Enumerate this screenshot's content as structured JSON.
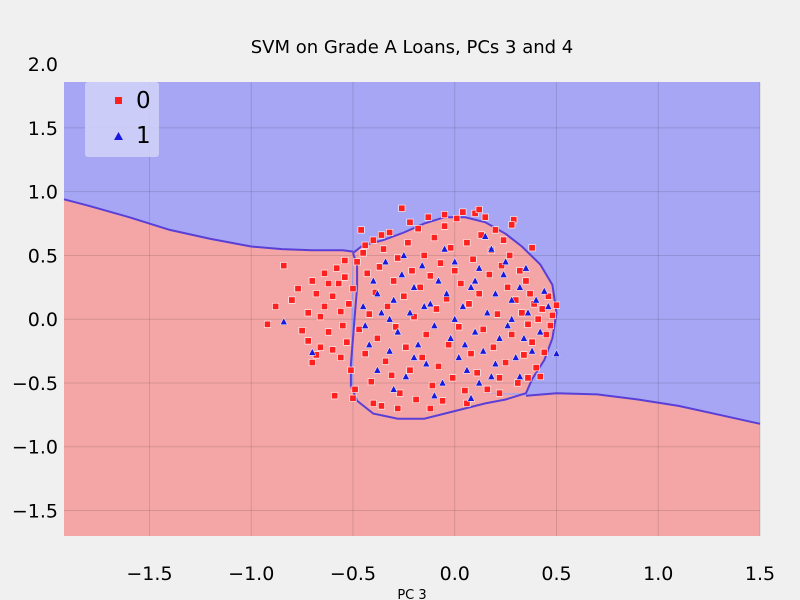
{
  "chart_data": {
    "type": "scatter",
    "title": "SVM on Grade A Loans, PCs 3 and 4",
    "xlabel": "PC 3",
    "ylabel": "",
    "xlim": [
      -1.92,
      1.5
    ],
    "ylim": [
      -1.7,
      1.86
    ],
    "xticks": [
      -1.5,
      -1.0,
      -0.5,
      0.0,
      0.5,
      1.0,
      1.5
    ],
    "xtick_labels": [
      "−1.5",
      "−1.0",
      "−0.5",
      "0.0",
      "0.5",
      "1.0",
      "1.5"
    ],
    "yticks": [
      -1.5,
      -1.0,
      -0.5,
      0.0,
      0.5,
      1.0,
      1.5,
      2.0
    ],
    "ytick_labels": [
      "−1.5",
      "−1.0",
      "−0.5",
      "0.0",
      "0.5",
      "1.0",
      "1.5",
      "2.0"
    ],
    "grid": true,
    "legend_position": "top-left",
    "colors": {
      "page_background": "#f0f0f0",
      "region_0": "#f4a6a6",
      "region_1": "#a6a6f4",
      "boundary": "#5a3fd6",
      "grid": "#cbcbcb",
      "class_0_marker": "#ff2020",
      "class_1_marker": "#1a1adf"
    },
    "decision_regions": [
      {
        "class": "0",
        "note": "lower region"
      },
      {
        "class": "1",
        "note": "upper region"
      }
    ],
    "boundary_outer": [
      [
        -1.92,
        0.94
      ],
      [
        -1.8,
        0.89
      ],
      [
        -1.6,
        0.8
      ],
      [
        -1.4,
        0.7
      ],
      [
        -1.2,
        0.63
      ],
      [
        -1.0,
        0.57
      ],
      [
        -0.85,
        0.55
      ],
      [
        -0.7,
        0.54
      ],
      [
        -0.55,
        0.54
      ],
      [
        -0.5,
        0.53
      ]
    ],
    "boundary_outer_right": [
      [
        0.35,
        -0.6
      ],
      [
        0.5,
        -0.58
      ],
      [
        0.7,
        -0.59
      ],
      [
        0.9,
        -0.63
      ],
      [
        1.1,
        -0.68
      ],
      [
        1.3,
        -0.75
      ],
      [
        1.5,
        -0.82
      ]
    ],
    "boundary_island": [
      [
        -0.5,
        0.52
      ],
      [
        -0.45,
        0.58
      ],
      [
        -0.35,
        0.62
      ],
      [
        -0.25,
        0.68
      ],
      [
        -0.15,
        0.75
      ],
      [
        -0.05,
        0.8
      ],
      [
        0.05,
        0.8
      ],
      [
        0.15,
        0.76
      ],
      [
        0.25,
        0.67
      ],
      [
        0.33,
        0.57
      ],
      [
        0.42,
        0.43
      ],
      [
        0.48,
        0.27
      ],
      [
        0.5,
        0.05
      ],
      [
        0.48,
        -0.15
      ],
      [
        0.44,
        -0.32
      ],
      [
        0.38,
        -0.47
      ],
      [
        0.35,
        -0.58
      ],
      [
        0.25,
        -0.63
      ],
      [
        0.15,
        -0.66
      ],
      [
        0.05,
        -0.7
      ],
      [
        -0.05,
        -0.74
      ],
      [
        -0.15,
        -0.78
      ],
      [
        -0.28,
        -0.78
      ],
      [
        -0.4,
        -0.74
      ],
      [
        -0.48,
        -0.64
      ],
      [
        -0.51,
        -0.52
      ],
      [
        -0.51,
        -0.35
      ],
      [
        -0.5,
        -0.15
      ],
      [
        -0.49,
        0.05
      ],
      [
        -0.48,
        0.25
      ],
      [
        -0.48,
        0.42
      ],
      [
        -0.5,
        0.52
      ]
    ],
    "series": [
      {
        "name": "0",
        "marker": "square",
        "points": [
          [
            -0.92,
            -0.04
          ],
          [
            -0.88,
            0.1
          ],
          [
            -0.84,
            0.42
          ],
          [
            -0.8,
            0.15
          ],
          [
            -0.77,
            0.24
          ],
          [
            -0.75,
            -0.09
          ],
          [
            -0.72,
            0.05
          ],
          [
            -0.72,
            -0.17
          ],
          [
            -0.7,
            -0.34
          ],
          [
            -0.68,
            0.2
          ],
          [
            -0.66,
            0.02
          ],
          [
            -0.64,
            0.36
          ],
          [
            -0.62,
            -0.1
          ],
          [
            -0.6,
            0.18
          ],
          [
            -0.6,
            -0.24
          ],
          [
            -0.59,
            -0.6
          ],
          [
            -0.57,
            0.28
          ],
          [
            -0.56,
            0.06
          ],
          [
            -0.55,
            -0.05
          ],
          [
            -0.54,
            0.33
          ],
          [
            -0.53,
            -0.18
          ],
          [
            -0.52,
            0.12
          ],
          [
            -0.51,
            -0.4
          ],
          [
            -0.5,
            0.24
          ],
          [
            -0.49,
            -0.55
          ],
          [
            -0.48,
            0.45
          ],
          [
            -0.47,
            -0.08
          ],
          [
            -0.46,
            0.7
          ],
          [
            -0.45,
            0.52
          ],
          [
            -0.44,
            -0.27
          ],
          [
            -0.43,
            0.36
          ],
          [
            -0.42,
            0.04
          ],
          [
            -0.41,
            -0.49
          ],
          [
            -0.4,
            0.62
          ],
          [
            -0.39,
            0.21
          ],
          [
            -0.38,
            -0.15
          ],
          [
            -0.37,
            0.41
          ],
          [
            -0.36,
            -0.68
          ],
          [
            -0.35,
            0.55
          ],
          [
            -0.34,
            -0.33
          ],
          [
            -0.33,
            0.1
          ],
          [
            -0.32,
            0.68
          ],
          [
            -0.31,
            -0.44
          ],
          [
            -0.3,
            0.3
          ],
          [
            -0.29,
            -0.06
          ],
          [
            -0.28,
            0.48
          ],
          [
            -0.27,
            -0.58
          ],
          [
            -0.26,
            0.87
          ],
          [
            -0.25,
            0.18
          ],
          [
            -0.24,
            -0.22
          ],
          [
            -0.23,
            0.6
          ],
          [
            -0.22,
            -0.4
          ],
          [
            -0.21,
            0.38
          ],
          [
            -0.2,
            0.02
          ],
          [
            -0.19,
            -0.63
          ],
          [
            -0.18,
            0.71
          ],
          [
            -0.17,
            0.25
          ],
          [
            -0.16,
            -0.3
          ],
          [
            -0.15,
            0.5
          ],
          [
            -0.14,
            -0.12
          ],
          [
            -0.13,
            0.8
          ],
          [
            -0.12,
            0.34
          ],
          [
            -0.11,
            -0.52
          ],
          [
            -0.1,
            0.64
          ],
          [
            -0.09,
            0.08
          ],
          [
            -0.08,
            -0.37
          ],
          [
            -0.07,
            0.44
          ],
          [
            -0.06,
            -0.64
          ],
          [
            -0.05,
            0.73
          ],
          [
            -0.04,
            0.16
          ],
          [
            -0.03,
            -0.2
          ],
          [
            -0.02,
            0.56
          ],
          [
            -0.01,
            -0.46
          ],
          [
            0.0,
            0.38
          ],
          [
            0.01,
            0.79
          ],
          [
            0.02,
            -0.06
          ],
          [
            0.03,
            0.28
          ],
          [
            0.04,
            0.84
          ],
          [
            0.05,
            -0.56
          ],
          [
            0.06,
            0.6
          ],
          [
            0.07,
            0.12
          ],
          [
            0.08,
            -0.27
          ],
          [
            0.09,
            0.47
          ],
          [
            0.1,
            0.83
          ],
          [
            0.11,
            -0.42
          ],
          [
            0.12,
            0.2
          ],
          [
            0.13,
            0.66
          ],
          [
            0.14,
            -0.08
          ],
          [
            0.15,
            0.8
          ],
          [
            0.16,
            -0.55
          ],
          [
            0.17,
            0.35
          ],
          [
            0.18,
            0.54
          ],
          [
            0.19,
            -0.22
          ],
          [
            0.2,
            0.7
          ],
          [
            0.21,
            0.04
          ],
          [
            0.22,
            -0.46
          ],
          [
            0.23,
            0.42
          ],
          [
            0.24,
            0.62
          ],
          [
            0.25,
            -0.34
          ],
          [
            0.26,
            0.25
          ],
          [
            0.27,
            0.5
          ],
          [
            0.28,
            -0.12
          ],
          [
            0.29,
            0.78
          ],
          [
            0.3,
            0.15
          ],
          [
            0.31,
            -0.5
          ],
          [
            0.32,
            0.38
          ],
          [
            0.33,
            0.05
          ],
          [
            0.34,
            -0.28
          ],
          [
            0.35,
            0.3
          ],
          [
            0.36,
            -0.04
          ],
          [
            0.37,
            0.2
          ],
          [
            0.38,
            -0.18
          ],
          [
            0.39,
            0.12
          ],
          [
            0.4,
            -0.38
          ],
          [
            0.41,
            0.0
          ],
          [
            0.42,
            -0.45
          ],
          [
            0.43,
            0.08
          ],
          [
            0.44,
            -0.26
          ],
          [
            0.45,
            -0.12
          ],
          [
            0.46,
            0.18
          ],
          [
            0.47,
            -0.05
          ],
          [
            0.48,
            0.03
          ],
          [
            0.5,
            0.11
          ],
          [
            -0.58,
            0.4
          ],
          [
            -0.62,
            0.28
          ],
          [
            -0.66,
            -0.22
          ],
          [
            -0.56,
            -0.3
          ],
          [
            -0.54,
            0.46
          ],
          [
            -0.44,
            0.58
          ],
          [
            -0.36,
            0.66
          ],
          [
            -0.22,
            0.76
          ],
          [
            -0.05,
            0.82
          ],
          [
            0.12,
            0.86
          ],
          [
            0.28,
            0.74
          ],
          [
            0.38,
            0.56
          ],
          [
            -0.5,
            -0.62
          ],
          [
            -0.4,
            -0.66
          ],
          [
            -0.28,
            -0.7
          ],
          [
            -0.12,
            -0.7
          ],
          [
            0.06,
            -0.66
          ],
          [
            0.22,
            -0.58
          ],
          [
            0.36,
            -0.46
          ],
          [
            -0.7,
            0.3
          ],
          [
            -0.68,
            -0.28
          ],
          [
            -0.64,
            0.1
          ]
        ]
      },
      {
        "name": "1",
        "marker": "triangle",
        "points": [
          [
            -0.84,
            -0.02
          ],
          [
            -0.7,
            -0.26
          ],
          [
            -0.45,
            0.1
          ],
          [
            -0.42,
            -0.2
          ],
          [
            -0.4,
            0.3
          ],
          [
            -0.38,
            -0.4
          ],
          [
            -0.36,
            0.05
          ],
          [
            -0.34,
            0.45
          ],
          [
            -0.32,
            -0.25
          ],
          [
            -0.3,
            0.15
          ],
          [
            -0.28,
            -0.1
          ],
          [
            -0.26,
            0.35
          ],
          [
            -0.24,
            -0.45
          ],
          [
            -0.22,
            0.05
          ],
          [
            -0.2,
            0.25
          ],
          [
            -0.18,
            -0.2
          ],
          [
            -0.16,
            0.42
          ],
          [
            -0.14,
            -0.35
          ],
          [
            -0.12,
            0.12
          ],
          [
            -0.1,
            -0.05
          ],
          [
            -0.08,
            0.3
          ],
          [
            -0.06,
            -0.5
          ],
          [
            -0.04,
            0.2
          ],
          [
            -0.02,
            -0.15
          ],
          [
            0.0,
            0.45
          ],
          [
            0.02,
            -0.3
          ],
          [
            0.04,
            0.1
          ],
          [
            0.06,
            -0.4
          ],
          [
            0.08,
            0.25
          ],
          [
            0.1,
            -0.1
          ],
          [
            0.12,
            0.4
          ],
          [
            0.14,
            -0.25
          ],
          [
            0.16,
            0.05
          ],
          [
            0.18,
            -0.45
          ],
          [
            0.2,
            0.2
          ],
          [
            0.22,
            -0.15
          ],
          [
            0.24,
            0.35
          ],
          [
            0.26,
            -0.05
          ],
          [
            0.28,
            0.15
          ],
          [
            0.3,
            -0.3
          ],
          [
            0.32,
            0.25
          ],
          [
            0.34,
            -0.15
          ],
          [
            0.36,
            0.05
          ],
          [
            0.38,
            -0.25
          ],
          [
            0.4,
            0.15
          ],
          [
            0.42,
            -0.1
          ],
          [
            0.44,
            0.22
          ],
          [
            0.46,
            0.1
          ],
          [
            0.5,
            -0.27
          ],
          [
            0.15,
            0.65
          ],
          [
            0.18,
            0.55
          ],
          [
            0.08,
            -0.62
          ],
          [
            -0.1,
            -0.6
          ],
          [
            -0.3,
            -0.55
          ],
          [
            0.25,
            0.45
          ],
          [
            0.32,
            -0.45
          ],
          [
            -0.44,
            -0.05
          ],
          [
            -0.38,
            0.2
          ],
          [
            -0.2,
            -0.3
          ],
          [
            0.0,
            0.0
          ],
          [
            0.1,
            0.3
          ],
          [
            -0.05,
            0.55
          ],
          [
            0.2,
            -0.35
          ],
          [
            -0.25,
            0.5
          ],
          [
            0.35,
            0.4
          ],
          [
            -0.15,
            0.1
          ],
          [
            0.05,
            -0.2
          ],
          [
            0.28,
            0.0
          ],
          [
            -0.32,
            0.0
          ],
          [
            0.12,
            -0.5
          ]
        ]
      }
    ]
  },
  "legend": {
    "entries": [
      {
        "label": "0",
        "marker": "square"
      },
      {
        "label": "1",
        "marker": "triangle"
      }
    ]
  }
}
